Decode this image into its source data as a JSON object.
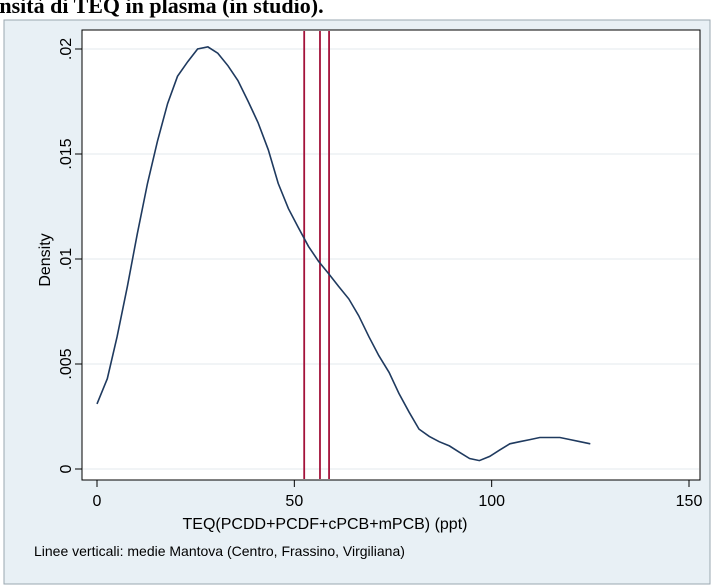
{
  "header_fragment": "le densità di TEQ in plasma (in studio).",
  "chart_data": {
    "type": "line",
    "xlabel": "TEQ(PCDD+PCDF+cPCB+mPCB) (ppt)",
    "ylabel": "Density",
    "note": "Linee verticali: medie Mantova (Centro, Frassino, Virgiliana)",
    "xlim": [
      0,
      150
    ],
    "ylim": [
      0,
      0.02
    ],
    "xticks": [
      0,
      50,
      100,
      150
    ],
    "xtick_labels": [
      "0",
      "50",
      "100",
      "150"
    ],
    "yticks": [
      0,
      0.005,
      0.01,
      0.015,
      0.02
    ],
    "ytick_labels": [
      "0",
      ".005",
      ".01",
      ".015",
      ".02"
    ],
    "grid": true,
    "series": [
      {
        "x": [
          0,
          2.6,
          5.1,
          7.7,
          10.2,
          12.8,
          15.3,
          17.9,
          20.4,
          23.0,
          25.5,
          28.1,
          30.6,
          33.2,
          35.7,
          38.3,
          40.8,
          43.4,
          45.9,
          48.5,
          51.0,
          53.6,
          56.1,
          58.7,
          61.2,
          63.8,
          66.3,
          68.9,
          71.4,
          74.0,
          76.5,
          79.1,
          81.6,
          84.2,
          86.7,
          89.3,
          91.8,
          94.4,
          96.9,
          99.5,
          102.0,
          104.6,
          107.1,
          109.7,
          112.2,
          114.8,
          117.3,
          119.9,
          122.4,
          125.0
        ],
        "y": [
          0.0031,
          0.0043,
          0.0063,
          0.0087,
          0.0112,
          0.0136,
          0.0156,
          0.0174,
          0.0187,
          0.0194,
          0.02,
          0.0201,
          0.0198,
          0.0192,
          0.0185,
          0.0175,
          0.0165,
          0.0152,
          0.0136,
          0.0124,
          0.0115,
          0.0106,
          0.0099,
          0.0093,
          0.0087,
          0.0081,
          0.0073,
          0.0063,
          0.0054,
          0.0046,
          0.0036,
          0.0027,
          0.0019,
          0.00155,
          0.0013,
          0.0011,
          0.0008,
          0.0005,
          0.0004,
          0.0006,
          0.0009,
          0.0012,
          0.0013,
          0.0014,
          0.0015,
          0.0015,
          0.0015,
          0.0014,
          0.0013,
          0.0012
        ],
        "color": "#1f3a5f"
      }
    ],
    "vlines": [
      {
        "x": 52.5,
        "color": "#a3123a"
      },
      {
        "x": 56.5,
        "color": "#a3123a"
      },
      {
        "x": 58.8,
        "color": "#a3123a"
      }
    ],
    "background_outer": "#e8f0f5",
    "background_plot": "#ffffff",
    "grid_color": "#e3eaee"
  }
}
